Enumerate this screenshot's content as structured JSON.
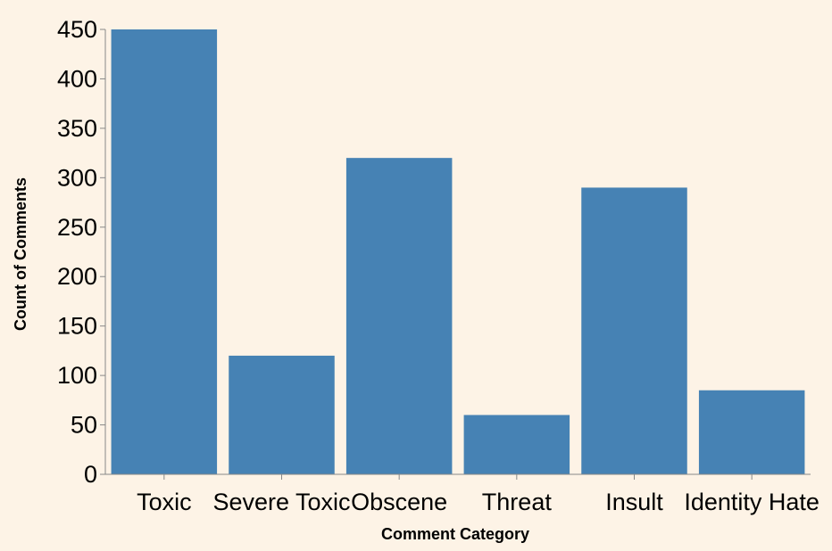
{
  "colors": {
    "background": "#fdf3e6",
    "bar": "#4682b4",
    "axis": "#888888"
  },
  "chart_data": {
    "type": "bar",
    "title": "",
    "xlabel": "Comment Category",
    "ylabel": "Count of Comments",
    "categories": [
      "Toxic",
      "Severe Toxic",
      "Obscene",
      "Threat",
      "Insult",
      "Identity Hate"
    ],
    "values": [
      450,
      120,
      320,
      60,
      290,
      85
    ],
    "ylim": [
      0,
      450
    ],
    "yticks": [
      "0",
      "50",
      "100",
      "150",
      "200",
      "250",
      "300",
      "350",
      "400",
      "450"
    ],
    "grid": false,
    "legend": "none"
  }
}
